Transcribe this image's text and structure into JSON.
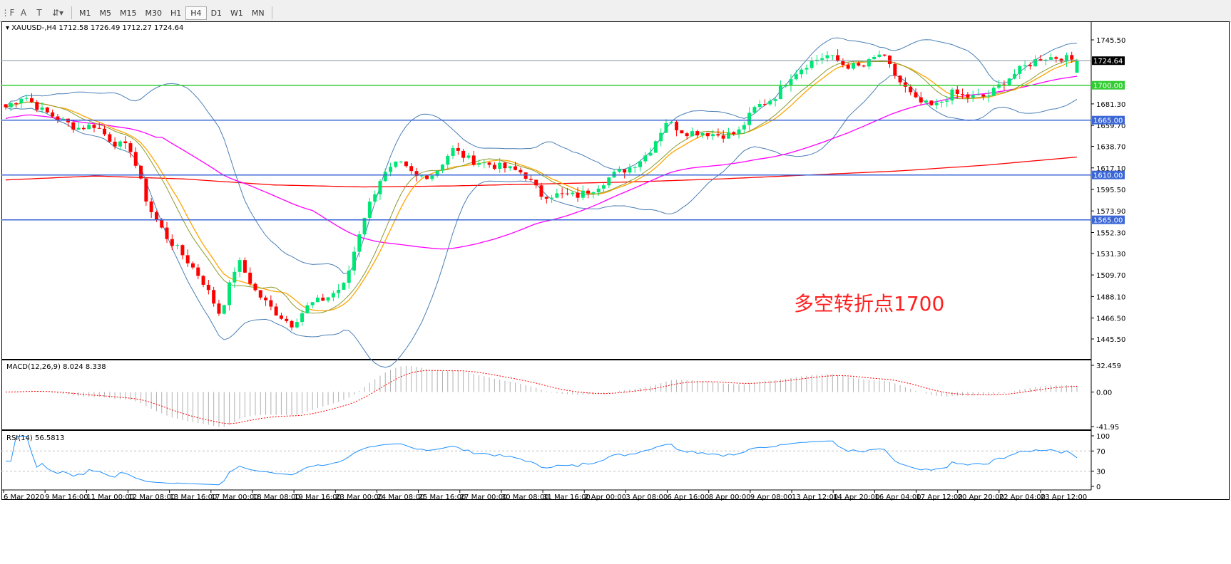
{
  "toolbar": {
    "tools": [
      {
        "name": "fibo-fan-icon",
        "glyph": "⋮F"
      },
      {
        "name": "text-icon",
        "glyph": "A"
      },
      {
        "name": "text-label-icon",
        "glyph": "T"
      },
      {
        "name": "arrows-icon",
        "glyph": "⇵▾"
      }
    ],
    "timeframes": [
      "M1",
      "M5",
      "M15",
      "M30",
      "H1",
      "H4",
      "D1",
      "W1",
      "MN"
    ],
    "active_timeframe": "H4"
  },
  "chart": {
    "symbol_header": "XAUUSD-,H4  1712.58 1726.49 1712.27 1724.64",
    "annotation": "多空转折点1700",
    "colors": {
      "bull": "#00e676",
      "bear": "#ff0000",
      "bollinger": "#4a7fb5",
      "ma_fast": "#ffa500",
      "ma_mid": "#8a9a30",
      "ma_magenta": "#ff00ff",
      "ma_long": "#ff0000",
      "level_green": "#33cc33",
      "level_blue": "#3a66d6",
      "current_price": "#8090a0"
    }
  },
  "chart_data": [
    {
      "type": "candlestick",
      "title": "XAUUSD-,H4",
      "ylim": [
        1445.5,
        1745.5
      ],
      "y_ticks": [
        "1745.50",
        "1681.30",
        "1659.70",
        "1638.70",
        "1617.10",
        "1595.50",
        "1573.90",
        "1552.30",
        "1531.30",
        "1509.70",
        "1488.10",
        "1466.50",
        "1445.50"
      ],
      "x_ticks": [
        "6 Mar 2020",
        "9 Mar 16:00",
        "11 Mar 00:00",
        "12 Mar 08:00",
        "13 Mar 16:00",
        "17 Mar 00:00",
        "18 Mar 08:00",
        "19 Mar 16:00",
        "23 Mar 00:00",
        "24 Mar 08:00",
        "25 Mar 16:00",
        "27 Mar 00:00",
        "30 Mar 08:00",
        "31 Mar 16:00",
        "2 Apr 00:00",
        "3 Apr 08:00",
        "6 Apr 16:00",
        "8 Apr 00:00",
        "9 Apr 08:00",
        "13 Apr 12:00",
        "14 Apr 20:00",
        "16 Apr 04:00",
        "17 Apr 12:00",
        "20 Apr 20:00",
        "22 Apr 04:00",
        "23 Apr 12:00"
      ],
      "close_trace": [
        1678,
        1690,
        1675,
        1666,
        1657,
        1660,
        1643,
        1636,
        1578,
        1548,
        1528,
        1505,
        1470,
        1525,
        1493,
        1474,
        1460,
        1480,
        1487,
        1500,
        1565,
        1607,
        1622,
        1608,
        1611,
        1636,
        1625,
        1621,
        1617,
        1612,
        1590,
        1590,
        1589,
        1597,
        1610,
        1618,
        1632,
        1664,
        1653,
        1653,
        1650,
        1652,
        1678,
        1687,
        1710,
        1723,
        1730,
        1720,
        1718,
        1732,
        1705,
        1684,
        1678,
        1692,
        1688,
        1689,
        1705,
        1718,
        1728,
        1728,
        1724.64
      ],
      "long_ma_trace": [
        1605,
        1609,
        1606,
        1600,
        1598,
        1599,
        1601,
        1603,
        1606,
        1610,
        1614,
        1620,
        1628
      ],
      "last": {
        "open": 1712.58,
        "high": 1726.49,
        "low": 1712.27,
        "close": 1724.64,
        "label": "1724.64"
      },
      "levels": [
        {
          "value": 1700,
          "label": "1700.00",
          "color": "green"
        },
        {
          "value": 1665,
          "label": "1665.00",
          "color": "blue"
        },
        {
          "value": 1610,
          "label": "1610.00",
          "color": "blue"
        },
        {
          "value": 1565,
          "label": "1565.00",
          "color": "blue"
        }
      ]
    },
    {
      "type": "macd",
      "title": "MACD(12,26,9) 8.024 8.338",
      "params": [
        12,
        26,
        9
      ],
      "main": 8.024,
      "signal": 8.338,
      "ylim": [
        -41.95,
        32.459
      ],
      "y_ticks": [
        "32.459",
        "0.00",
        "-41.95"
      ]
    },
    {
      "type": "rsi",
      "title": "RSI(14) 56.5813",
      "period": 14,
      "value": 56.5813,
      "ylim": [
        0,
        100
      ],
      "levels": [
        30,
        70
      ],
      "y_ticks": [
        "100",
        "70",
        "30",
        "0"
      ]
    }
  ]
}
